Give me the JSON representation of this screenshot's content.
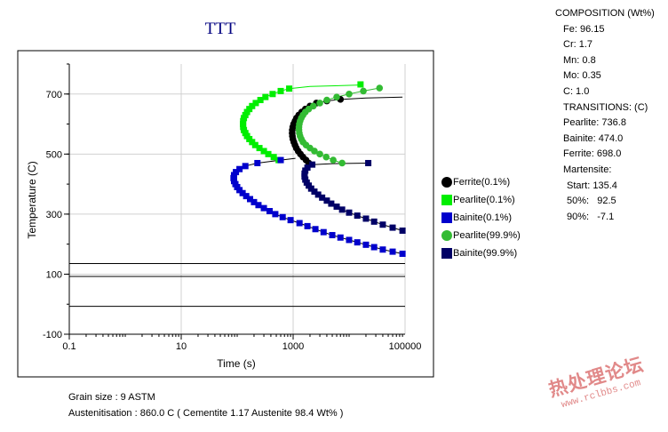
{
  "chart_data": {
    "type": "scatter",
    "title": "TTT",
    "xlabel": "Time (s)",
    "ylabel": "Temperature (C)",
    "xscale": "log",
    "xlim": [
      0.1,
      100000
    ],
    "ylim": [
      -100,
      800
    ],
    "xticks": [
      0.1,
      10,
      1000,
      100000
    ],
    "xtick_labels": [
      "0.1",
      "10",
      "1000",
      "100000"
    ],
    "yticks": [
      -100,
      100,
      300,
      500,
      700
    ],
    "ytick_labels": [
      "-100",
      "100",
      "300",
      "500",
      "700"
    ],
    "grid": true,
    "legend_position": "right",
    "horizontal_lines": [
      135.4,
      92.5,
      -7.1
    ],
    "series": [
      {
        "name": "Ferrite(0.1%)",
        "marker": "circle",
        "color": "#000000",
        "points": [
          [
            1900,
            470
          ],
          [
            1700,
            480
          ],
          [
            1500,
            490
          ],
          [
            1350,
            500
          ],
          [
            1230,
            510
          ],
          [
            1140,
            520
          ],
          [
            1080,
            530
          ],
          [
            1030,
            540
          ],
          [
            990,
            550
          ],
          [
            970,
            560
          ],
          [
            960,
            570
          ],
          [
            965,
            580
          ],
          [
            985,
            590
          ],
          [
            1020,
            600
          ],
          [
            1080,
            610
          ],
          [
            1150,
            620
          ],
          [
            1260,
            630
          ],
          [
            1420,
            640
          ],
          [
            1650,
            650
          ],
          [
            2000,
            660
          ],
          [
            2600,
            670
          ],
          [
            4000,
            677
          ],
          [
            7000,
            682
          ]
        ],
        "curve": [
          [
            2100,
            465
          ],
          [
            1900,
            470
          ],
          [
            1500,
            490
          ],
          [
            1230,
            510
          ],
          [
            1080,
            530
          ],
          [
            990,
            550
          ],
          [
            960,
            570
          ],
          [
            985,
            590
          ],
          [
            1080,
            610
          ],
          [
            1260,
            630
          ],
          [
            1650,
            650
          ],
          [
            2600,
            670
          ],
          [
            4000,
            677
          ],
          [
            7000,
            682
          ],
          [
            20000,
            687
          ],
          [
            90000,
            690
          ]
        ]
      },
      {
        "name": "Pearlite(0.1%)",
        "marker": "square",
        "color": "#00ee00",
        "points": [
          [
            550,
            480
          ],
          [
            450,
            490
          ],
          [
            360,
            500
          ],
          [
            300,
            510
          ],
          [
            250,
            520
          ],
          [
            210,
            530
          ],
          [
            185,
            540
          ],
          [
            165,
            550
          ],
          [
            150,
            560
          ],
          [
            140,
            570
          ],
          [
            132,
            580
          ],
          [
            128,
            590
          ],
          [
            127,
            600
          ],
          [
            128,
            610
          ],
          [
            132,
            620
          ],
          [
            140,
            630
          ],
          [
            150,
            640
          ],
          [
            165,
            650
          ],
          [
            185,
            660
          ],
          [
            215,
            670
          ],
          [
            260,
            680
          ],
          [
            320,
            690
          ],
          [
            430,
            700
          ],
          [
            600,
            710
          ],
          [
            850,
            718
          ]
        ],
        "curve": [
          [
            650,
            476
          ],
          [
            550,
            480
          ],
          [
            450,
            490
          ],
          [
            360,
            500
          ],
          [
            300,
            510
          ],
          [
            250,
            520
          ],
          [
            210,
            530
          ],
          [
            185,
            540
          ],
          [
            165,
            550
          ],
          [
            150,
            560
          ],
          [
            140,
            570
          ],
          [
            132,
            580
          ],
          [
            128,
            590
          ],
          [
            127,
            600
          ],
          [
            128,
            610
          ],
          [
            132,
            620
          ],
          [
            140,
            630
          ],
          [
            150,
            640
          ],
          [
            165,
            650
          ],
          [
            185,
            660
          ],
          [
            215,
            670
          ],
          [
            260,
            680
          ],
          [
            320,
            690
          ],
          [
            430,
            700
          ],
          [
            600,
            710
          ],
          [
            850,
            718
          ],
          [
            2000,
            725
          ],
          [
            16000,
            730
          ]
        ],
        "extra_points": [
          [
            16000,
            732
          ]
        ]
      },
      {
        "name": "Bainite(0.1%)",
        "marker": "square",
        "color": "#0000cc",
        "points": [
          [
            90000,
            168
          ],
          [
            60000,
            175
          ],
          [
            40000,
            182
          ],
          [
            28000,
            190
          ],
          [
            20000,
            198
          ],
          [
            14000,
            206
          ],
          [
            10000,
            214
          ],
          [
            7000,
            222
          ],
          [
            5000,
            230
          ],
          [
            3500,
            240
          ],
          [
            2500,
            250
          ],
          [
            1800,
            260
          ],
          [
            1300,
            270
          ],
          [
            900,
            280
          ],
          [
            650,
            290
          ],
          [
            480,
            300
          ],
          [
            380,
            310
          ],
          [
            300,
            320
          ],
          [
            240,
            330
          ],
          [
            200,
            340
          ],
          [
            170,
            350
          ],
          [
            145,
            360
          ],
          [
            125,
            370
          ],
          [
            110,
            380
          ],
          [
            100,
            390
          ],
          [
            93,
            400
          ],
          [
            88,
            410
          ],
          [
            86,
            420
          ],
          [
            88,
            430
          ],
          [
            95,
            440
          ],
          [
            110,
            450
          ],
          [
            140,
            460
          ],
          [
            230,
            470
          ],
          [
            600,
            480
          ]
        ],
        "curve": [
          [
            100000,
            165
          ],
          [
            90000,
            168
          ],
          [
            60000,
            175
          ],
          [
            40000,
            182
          ],
          [
            28000,
            190
          ],
          [
            20000,
            198
          ],
          [
            14000,
            206
          ],
          [
            10000,
            214
          ],
          [
            7000,
            222
          ],
          [
            5000,
            230
          ],
          [
            3500,
            240
          ],
          [
            2500,
            250
          ],
          [
            1800,
            260
          ],
          [
            1300,
            270
          ],
          [
            900,
            280
          ],
          [
            650,
            290
          ],
          [
            480,
            300
          ],
          [
            380,
            310
          ],
          [
            300,
            320
          ],
          [
            240,
            330
          ],
          [
            200,
            340
          ],
          [
            170,
            350
          ],
          [
            145,
            360
          ],
          [
            125,
            370
          ],
          [
            110,
            380
          ],
          [
            100,
            390
          ],
          [
            93,
            400
          ],
          [
            88,
            410
          ],
          [
            86,
            420
          ],
          [
            88,
            430
          ],
          [
            95,
            440
          ],
          [
            110,
            450
          ],
          [
            140,
            460
          ],
          [
            230,
            470
          ],
          [
            600,
            480
          ],
          [
            1100,
            486
          ]
        ]
      },
      {
        "name": "Pearlite(99.9%)",
        "marker": "circle",
        "color": "#33bb33",
        "points": [
          [
            7500,
            470
          ],
          [
            5200,
            480
          ],
          [
            3900,
            490
          ],
          [
            3000,
            500
          ],
          [
            2400,
            510
          ],
          [
            2000,
            520
          ],
          [
            1700,
            530
          ],
          [
            1500,
            540
          ],
          [
            1400,
            550
          ],
          [
            1330,
            560
          ],
          [
            1290,
            570
          ],
          [
            1270,
            580
          ],
          [
            1270,
            590
          ],
          [
            1290,
            600
          ],
          [
            1330,
            610
          ],
          [
            1400,
            620
          ],
          [
            1500,
            630
          ],
          [
            1650,
            640
          ],
          [
            1900,
            650
          ],
          [
            2300,
            660
          ],
          [
            3000,
            670
          ],
          [
            4000,
            680
          ],
          [
            6000,
            690
          ],
          [
            10000,
            700
          ],
          [
            18000,
            710
          ],
          [
            35000,
            720
          ]
        ],
        "curve": [
          [
            8500,
            466
          ],
          [
            7500,
            470
          ],
          [
            5200,
            480
          ],
          [
            3900,
            490
          ],
          [
            3000,
            500
          ],
          [
            2400,
            510
          ],
          [
            2000,
            520
          ],
          [
            1700,
            530
          ],
          [
            1500,
            540
          ],
          [
            1400,
            550
          ],
          [
            1330,
            560
          ],
          [
            1290,
            570
          ],
          [
            1270,
            580
          ],
          [
            1270,
            590
          ],
          [
            1290,
            600
          ],
          [
            1330,
            610
          ],
          [
            1400,
            620
          ],
          [
            1500,
            630
          ],
          [
            1650,
            640
          ],
          [
            1900,
            650
          ],
          [
            2300,
            660
          ],
          [
            3000,
            670
          ],
          [
            4000,
            680
          ],
          [
            6000,
            690
          ],
          [
            10000,
            700
          ],
          [
            18000,
            710
          ],
          [
            35000,
            720
          ]
        ]
      },
      {
        "name": "Bainite(99.9%)",
        "marker": "square",
        "color": "#000066",
        "points": [
          [
            90000,
            245
          ],
          [
            60000,
            255
          ],
          [
            40000,
            265
          ],
          [
            28000,
            275
          ],
          [
            20000,
            285
          ],
          [
            14000,
            295
          ],
          [
            10000,
            305
          ],
          [
            7500,
            315
          ],
          [
            6000,
            325
          ],
          [
            4800,
            335
          ],
          [
            4000,
            345
          ],
          [
            3300,
            355
          ],
          [
            2800,
            365
          ],
          [
            2400,
            375
          ],
          [
            2100,
            385
          ],
          [
            1900,
            395
          ],
          [
            1750,
            405
          ],
          [
            1650,
            415
          ],
          [
            1600,
            425
          ],
          [
            1600,
            435
          ],
          [
            1650,
            445
          ],
          [
            1800,
            455
          ],
          [
            2200,
            465
          ],
          [
            22000,
            470
          ]
        ],
        "curve": [
          [
            100000,
            242
          ],
          [
            90000,
            245
          ],
          [
            60000,
            255
          ],
          [
            40000,
            265
          ],
          [
            28000,
            275
          ],
          [
            20000,
            285
          ],
          [
            14000,
            295
          ],
          [
            10000,
            305
          ],
          [
            7500,
            315
          ],
          [
            6000,
            325
          ],
          [
            4800,
            335
          ],
          [
            4000,
            345
          ],
          [
            3300,
            355
          ],
          [
            2800,
            365
          ],
          [
            2400,
            375
          ],
          [
            2100,
            385
          ],
          [
            1900,
            395
          ],
          [
            1750,
            405
          ],
          [
            1650,
            415
          ],
          [
            1600,
            425
          ],
          [
            1600,
            435
          ],
          [
            1650,
            445
          ],
          [
            1800,
            455
          ],
          [
            2200,
            465
          ],
          [
            5000,
            468
          ],
          [
            22000,
            470
          ]
        ]
      }
    ]
  },
  "composition": {
    "header": "COMPOSITION (Wt%)",
    "lines": [
      "Fe: 96.15",
      "Cr: 1.7",
      "Mn: 0.8",
      "Mo: 0.35",
      "C: 1.0"
    ]
  },
  "transitions": {
    "header": "TRANSITIONS: (C)",
    "lines": [
      "Pearlite: 736.8",
      "Bainite: 474.0",
      "Ferrite: 698.0"
    ]
  },
  "martensite": {
    "header": "Martensite:",
    "start": "Start: 135.4",
    "p50": "50%:   92.5",
    "p90": "90%:   -7.1"
  },
  "footer": {
    "grain_size": "Grain size : 9 ASTM",
    "austenitisation": "Austenitisation : 860.0 C ( Cementite 1.17 Austenite 98.4 Wt% )"
  },
  "watermark": {
    "main": "热处理论坛",
    "sub": "www.rclbbs.com"
  }
}
